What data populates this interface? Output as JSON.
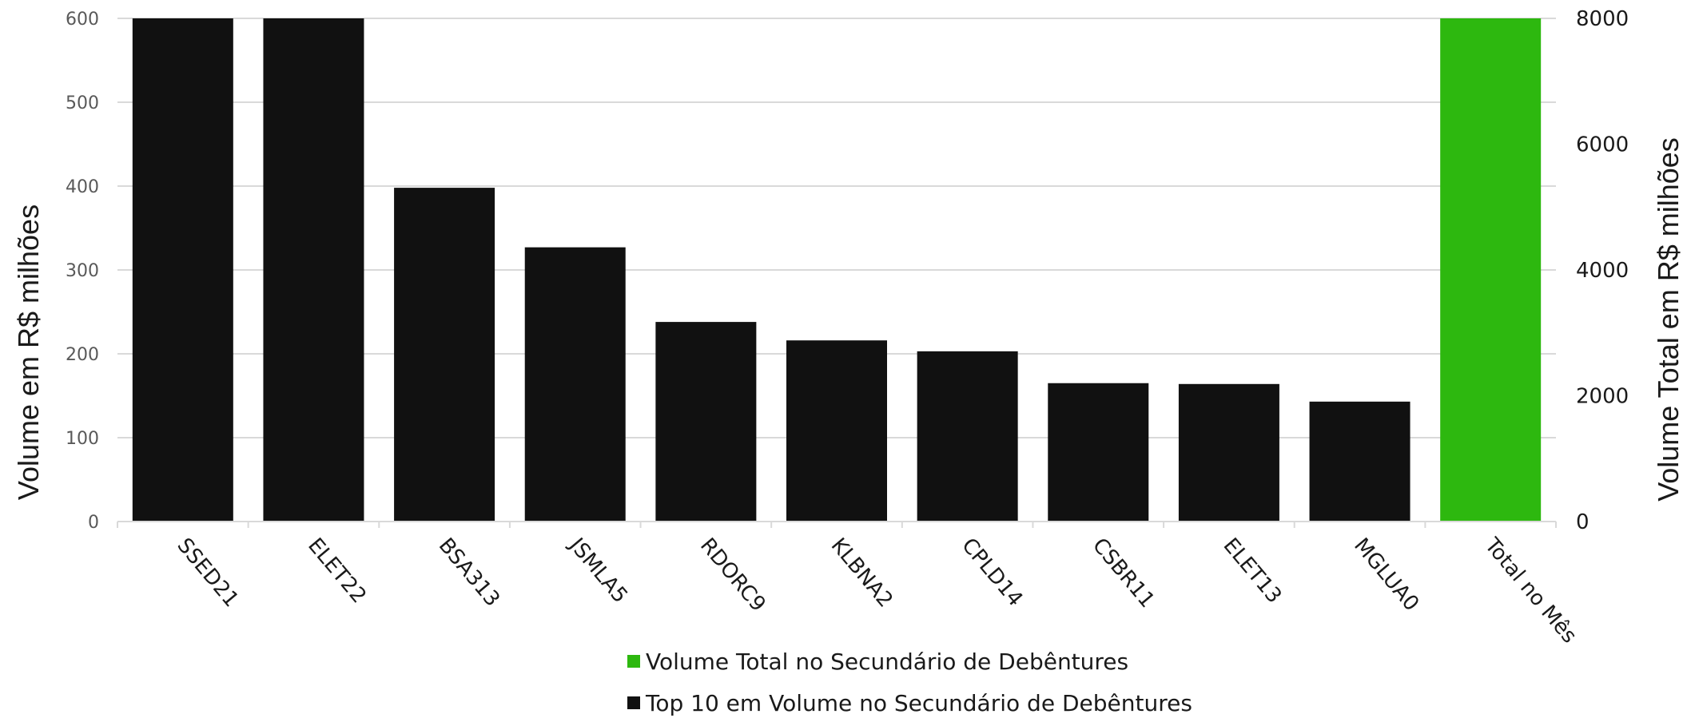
{
  "chart_data": {
    "type": "bar",
    "categories": [
      "SSED21",
      "ELET22",
      "BSA313",
      "JSMLA5",
      "RDORC9",
      "KLBNA2",
      "CPLD14",
      "CSBR11",
      "ELET13",
      "MGLUA0",
      "Total no Mês"
    ],
    "series": [
      {
        "name": "Top 10 em Volume no Secundário de Debêntures",
        "axis": "left",
        "color": "#111111",
        "values": [
          600,
          600,
          398,
          327,
          238,
          216,
          203,
          165,
          164,
          143,
          null
        ]
      },
      {
        "name": "Volume Total no Secundário de Debêntures",
        "axis": "right",
        "color": "#2db80f",
        "values": [
          null,
          null,
          null,
          null,
          null,
          null,
          null,
          null,
          null,
          null,
          8000
        ]
      }
    ],
    "ylabel": "Volume em R$ milhões",
    "y2label": "Volume Total em R$ milhões",
    "ylim": [
      0,
      600
    ],
    "y2lim": [
      0,
      8000
    ],
    "yticks": [
      "0",
      "100",
      "200",
      "300",
      "400",
      "500",
      "600"
    ],
    "y2ticks": [
      "0",
      "2000",
      "4000",
      "6000",
      "8000"
    ],
    "grid": true,
    "legend_position": "bottom",
    "legend_order": [
      "Volume Total no Secundário de Debêntures",
      "Top 10 em Volume no Secundário de Debêntures"
    ]
  }
}
